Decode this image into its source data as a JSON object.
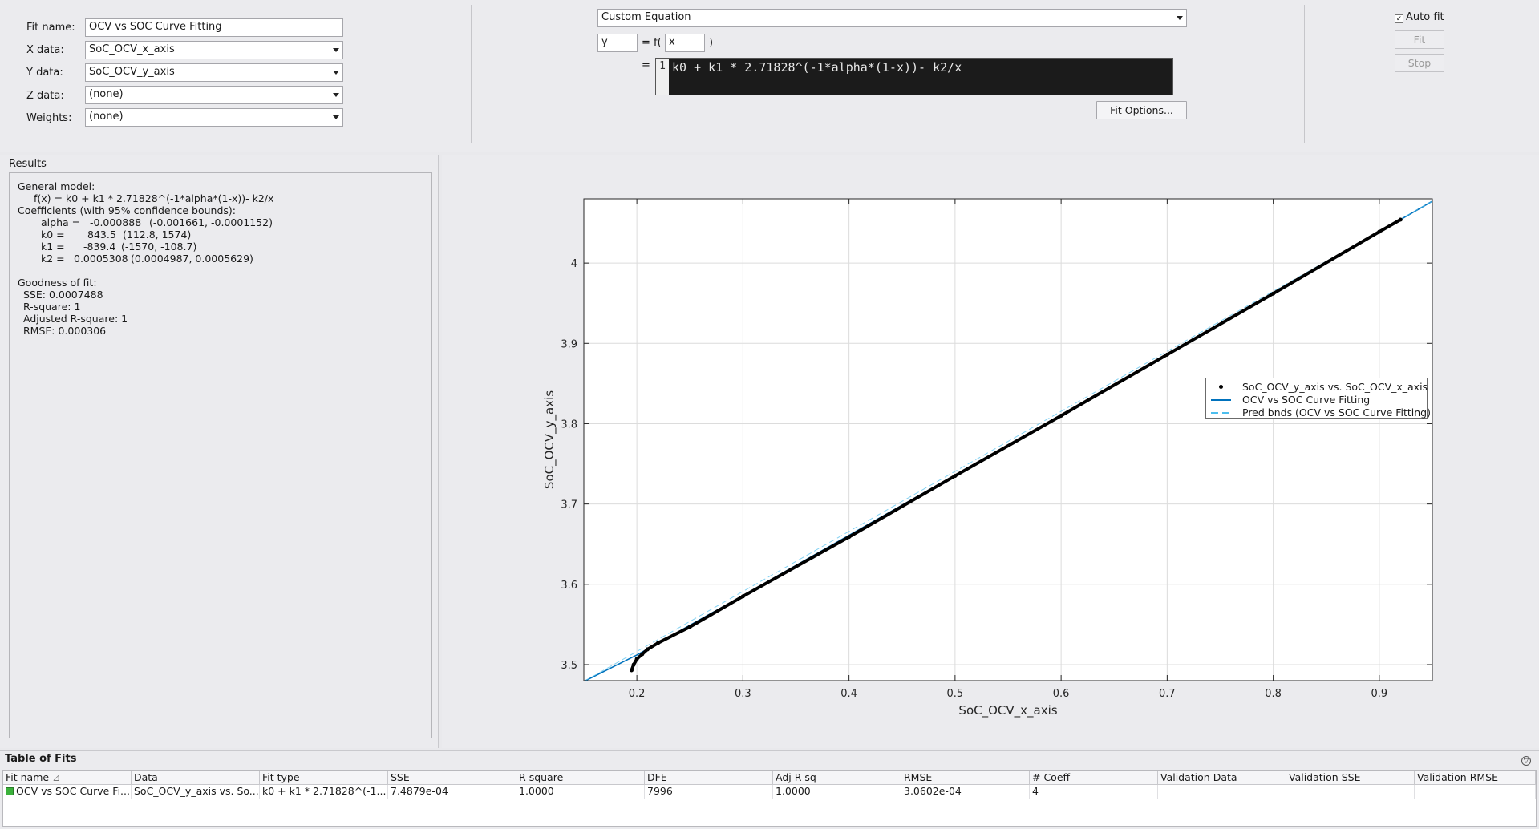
{
  "settings": {
    "fit_name_label": "Fit name:",
    "fit_name_value": "OCV vs SOC Curve Fitting",
    "x_data_label": "X data:",
    "x_data_value": "SoC_OCV_x_axis",
    "y_data_label": "Y data:",
    "y_data_value": "SoC_OCV_y_axis",
    "z_data_label": "Z data:",
    "z_data_value": "(none)",
    "weights_label": "Weights:",
    "weights_value": "(none)"
  },
  "equation": {
    "type_value": "Custom Equation",
    "dependent_var": "y",
    "equals_f": "= f(",
    "independent_var": "x",
    "close_paren": ")",
    "equals": "=",
    "line_number": "1",
    "expression": "k0 + k1 * 2.71828^(-1*alpha*(1-x))- k2/x",
    "fit_options_label": "Fit Options..."
  },
  "controls": {
    "auto_fit_label": "Auto fit",
    "auto_fit_checked": true,
    "fit_label": "Fit",
    "stop_label": "Stop"
  },
  "results": {
    "title": "Results",
    "general_model_label": "General model:",
    "model_formula": "f(x) = k0 + k1 * 2.71828^(-1*alpha*(1-x))- k2/x",
    "coefficients_label": "Coefficients (with 95% confidence bounds):",
    "coefficients": [
      {
        "name": "alpha =",
        "value": "-0.000888",
        "bounds": "(-0.001661, -0.0001152)"
      },
      {
        "name": "k0 =",
        "value": "843.5",
        "bounds": "(112.8, 1574)"
      },
      {
        "name": "k1 =",
        "value": "-839.4",
        "bounds": "(-1570, -108.7)"
      },
      {
        "name": "k2 =",
        "value": "0.0005308",
        "bounds": "(0.0004987, 0.0005629)"
      }
    ],
    "goodness_label": "Goodness of fit:",
    "goodness": [
      "SSE: 0.0007488",
      "R-square: 1",
      "Adjusted R-square: 1",
      "RMSE: 0.000306"
    ]
  },
  "chart_data": {
    "type": "scatter",
    "xlabel": "SoC_OCV_x_axis",
    "ylabel": "SoC_OCV_y_axis",
    "xlim": [
      0.15,
      0.95
    ],
    "ylim": [
      3.48,
      4.08
    ],
    "xticks": [
      0.2,
      0.3,
      0.4,
      0.5,
      0.6,
      0.7,
      0.8,
      0.9
    ],
    "yticks": [
      3.5,
      3.6,
      3.7,
      3.8,
      3.9,
      4.0
    ],
    "xtick_labels": [
      "0.2",
      "0.3",
      "0.4",
      "0.5",
      "0.6",
      "0.7",
      "0.8",
      "0.9"
    ],
    "ytick_labels": [
      "3.5",
      "3.6",
      "3.7",
      "3.8",
      "3.9",
      "4"
    ],
    "grid": true,
    "legend_position": "right",
    "series": [
      {
        "name": "SoC_OCV_y_axis vs. SoC_OCV_x_axis",
        "style": "points",
        "color": "#000000",
        "x": [
          0.195,
          0.197,
          0.2,
          0.205,
          0.21,
          0.22,
          0.25,
          0.3,
          0.4,
          0.5,
          0.6,
          0.7,
          0.8,
          0.9,
          0.92
        ],
        "y": [
          3.493,
          3.5,
          3.507,
          3.513,
          3.519,
          3.527,
          3.547,
          3.585,
          3.659,
          3.735,
          3.81,
          3.886,
          3.962,
          4.039,
          4.054
        ]
      },
      {
        "name": "OCV vs SOC Curve Fitting",
        "style": "line",
        "color": "#0072bd",
        "x": [
          0.15,
          0.2,
          0.3,
          0.4,
          0.5,
          0.6,
          0.7,
          0.8,
          0.9,
          0.95
        ],
        "y": [
          3.479,
          3.512,
          3.586,
          3.661,
          3.736,
          3.811,
          3.887,
          3.963,
          4.039,
          4.077
        ]
      },
      {
        "name": "Pred bnds (OCV vs SOC Curve Fitting)",
        "style": "dashed",
        "color": "#4dbeee",
        "x": [
          0.15,
          0.95
        ],
        "y": [
          3.479,
          4.077
        ]
      }
    ]
  },
  "table": {
    "title": "Table of Fits",
    "headers": [
      "Fit name",
      "Data",
      "Fit type",
      "SSE",
      "R-square",
      "DFE",
      "Adj R-sq",
      "RMSE",
      "# Coeff",
      "Validation Data",
      "Validation SSE",
      "Validation RMSE"
    ],
    "sort_indicator": "⊿",
    "rows": [
      [
        "OCV vs SOC Curve Fi...",
        "SoC_OCV_y_axis vs. So...",
        "k0 + k1 * 2.71828^(-1...",
        "7.4879e-04",
        "1.0000",
        "7996",
        "1.0000",
        "3.0602e-04",
        "4",
        "",
        "",
        ""
      ]
    ]
  },
  "colors": {
    "fit_line": "#0072bd",
    "pred_bounds": "#4dbeee",
    "data_points": "#000000",
    "fit_swatch": "#3bb13b",
    "editor_bg": "#1b1b1b"
  }
}
